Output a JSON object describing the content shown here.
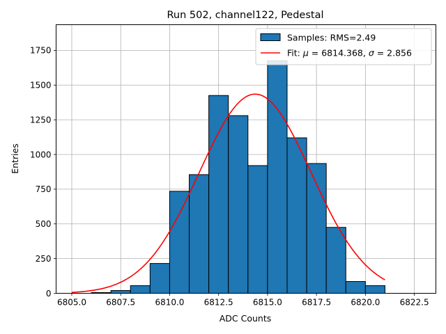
{
  "chart_data": {
    "type": "bar",
    "title": "Run 502, channel122, Pedestal",
    "xlabel": "ADC Counts",
    "ylabel": "Entries",
    "xlim": [
      6804.2,
      6823.6
    ],
    "ylim": [
      0,
      1935
    ],
    "grid": true,
    "x_ticks": [
      6805.0,
      6807.5,
      6810.0,
      6812.5,
      6815.0,
      6817.5,
      6820.0,
      6822.5
    ],
    "x_tick_labels": [
      "6805.0",
      "6807.5",
      "6810.0",
      "6812.5",
      "6815.0",
      "6817.5",
      "6820.0",
      "6822.5"
    ],
    "y_ticks": [
      0,
      250,
      500,
      750,
      1000,
      1250,
      1500,
      1750
    ],
    "y_tick_labels": [
      "0",
      "250",
      "500",
      "750",
      "1000",
      "1250",
      "1500",
      "1750"
    ],
    "bin_edges": [
      6805,
      6806,
      6807,
      6808,
      6809,
      6810,
      6811,
      6812,
      6813,
      6814,
      6815,
      6816,
      6817,
      6818,
      6819,
      6820,
      6821
    ],
    "series": [
      {
        "name": "Samples: RMS=2.49",
        "kind": "histogram",
        "color": "#1f77b4",
        "edgecolor": "#000000",
        "values": [
          0,
          5,
          20,
          55,
          215,
          735,
          855,
          1425,
          1280,
          920,
          1675,
          1120,
          935,
          475,
          85,
          55
        ]
      },
      {
        "name": "Fit: μ = 6814.368, σ = 2.856",
        "kind": "gaussian-fit",
        "color": "#ff0000",
        "mu": 6814.368,
        "sigma": 2.856,
        "amplitude": 1435,
        "x_range": [
          6805,
          6821
        ]
      }
    ],
    "legend": {
      "placement": "top-right",
      "entries": [
        {
          "label": "Samples: RMS=2.49",
          "series": 0
        },
        {
          "label_prefix": "Fit: ",
          "mu_sym": "μ",
          "label_mid": " = 6814.368, ",
          "sigma_sym": "σ",
          "label_suffix": " = 2.856",
          "series": 1
        }
      ]
    }
  }
}
